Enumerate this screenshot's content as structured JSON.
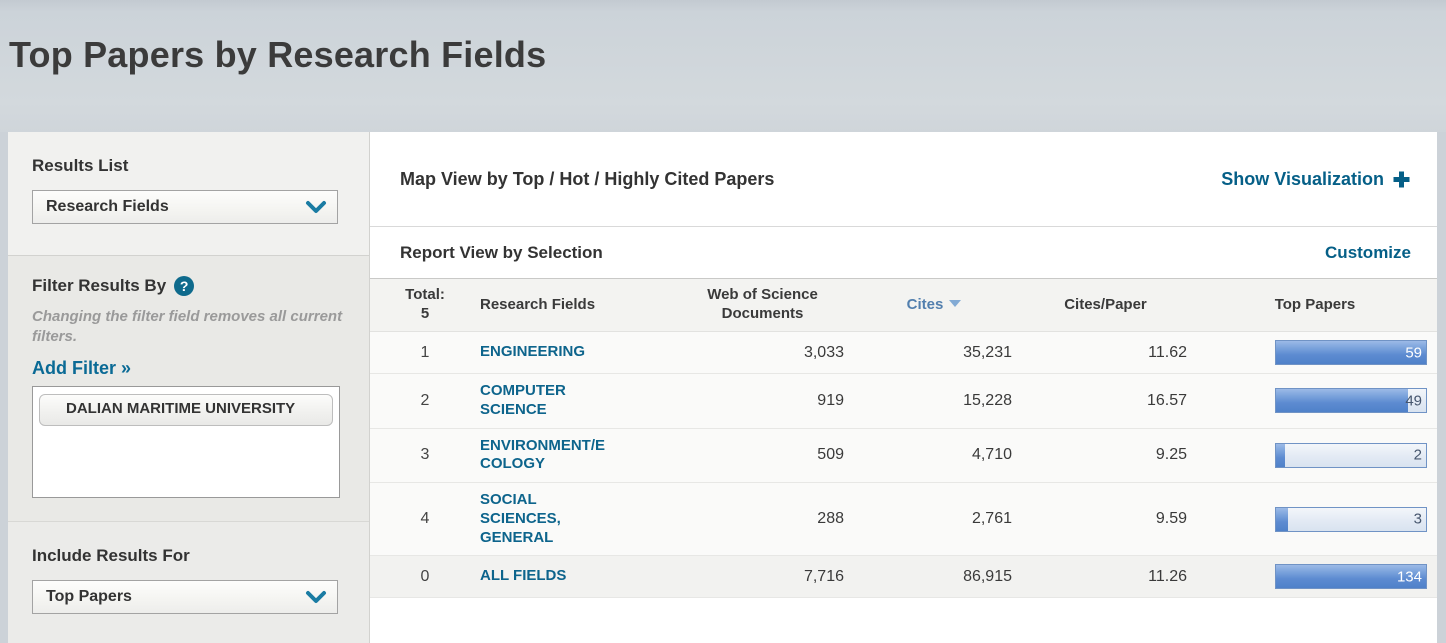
{
  "page": {
    "title": "Top Papers by Research Fields"
  },
  "colors": {
    "accent_link": "#0a6a95",
    "sorted_column": "#527fae",
    "bar_fill": "#5586cd",
    "banner_bg": "#ccd3d9"
  },
  "sidebar": {
    "results_list": {
      "label": "Results List",
      "dropdown_value": "Research Fields",
      "chevron_icon": "chevron-down"
    },
    "filter": {
      "label": "Filter Results By",
      "help_icon_glyph": "?",
      "note": "Changing the filter field removes all current filters.",
      "add_filter_label": "Add Filter »",
      "filters": [
        {
          "label": "DALIAN MARITIME UNIVERSITY"
        }
      ]
    },
    "include_results": {
      "label": "Include Results For",
      "dropdown_value": "Top Papers",
      "chevron_icon": "chevron-down"
    }
  },
  "main": {
    "map_view": {
      "title": "Map View by Top / Hot / Highly Cited Papers",
      "action_label": "Show Visualization",
      "action_icon": "plus"
    },
    "report_view": {
      "title": "Report View by Selection",
      "action_label": "Customize"
    }
  },
  "table": {
    "total_label": "Total:",
    "total_count": "5",
    "columns": {
      "field": "Research Fields",
      "documents": "Web of Science Documents",
      "cites": "Cites",
      "cites_per_paper": "Cites/Paper",
      "top_papers": "Top Papers"
    },
    "sorted_by": "Cites",
    "sort_direction": "descending",
    "rows": [
      {
        "rank": "1",
        "field": "ENGINEERING",
        "documents": "3,033",
        "cites": "35,231",
        "cites_per_paper": "11.62",
        "top_papers": "59",
        "bar_pct": 100
      },
      {
        "rank": "2",
        "field": "COMPUTER\nSCIENCE",
        "documents": "919",
        "cites": "15,228",
        "cites_per_paper": "16.57",
        "top_papers": "49",
        "bar_pct": 88
      },
      {
        "rank": "3",
        "field": "ENVIRONMENT/E\nCOLOGY",
        "documents": "509",
        "cites": "4,710",
        "cites_per_paper": "9.25",
        "top_papers": "2",
        "bar_pct": 6
      },
      {
        "rank": "4",
        "field": "SOCIAL\nSCIENCES,\nGENERAL",
        "documents": "288",
        "cites": "2,761",
        "cites_per_paper": "9.59",
        "top_papers": "3",
        "bar_pct": 8
      },
      {
        "rank": "0",
        "field": "ALL FIELDS",
        "documents": "7,716",
        "cites": "86,915",
        "cites_per_paper": "11.26",
        "top_papers": "134",
        "bar_pct": 100
      }
    ]
  },
  "chart_data": {
    "type": "bar",
    "title": "Top Papers",
    "categories": [
      "ENGINEERING",
      "COMPUTER SCIENCE",
      "ENVIRONMENT/ECOLOGY",
      "SOCIAL SCIENCES, GENERAL",
      "ALL FIELDS"
    ],
    "values": [
      59,
      49,
      2,
      3,
      134
    ]
  }
}
